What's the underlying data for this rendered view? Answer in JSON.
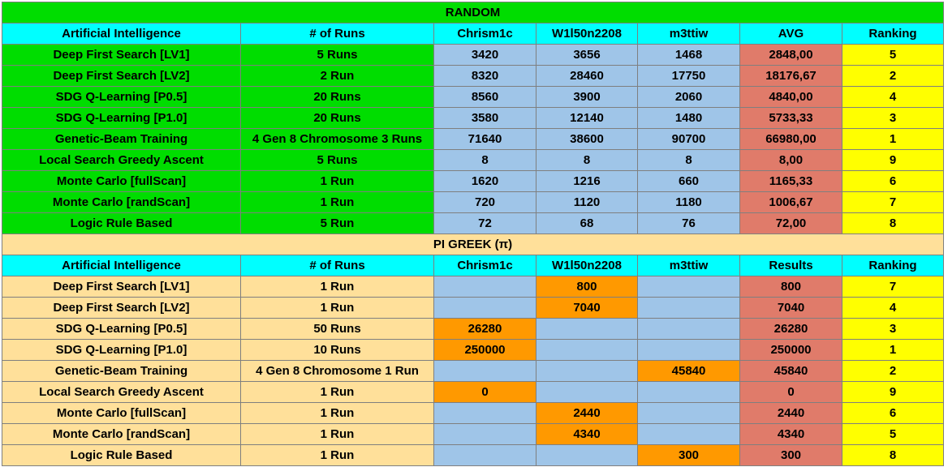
{
  "colors": {
    "random_section": "#00dd00",
    "pi_section": "#ffe09a",
    "header": "#00ffff",
    "player_cell": "#9fc5e8",
    "highlight_cell": "#ff9900",
    "avg_cell": "#e07b6a",
    "rank_cell": "#ffff00"
  },
  "chart_data": [
    {
      "type": "table",
      "title": "RANDOM",
      "columns": [
        "Artificial Intelligence",
        "# of Runs",
        "Chrism1c",
        "W1l50n2208",
        "m3ttiw",
        "AVG",
        "Ranking"
      ],
      "rows": [
        {
          "ai": "Deep First Search [LV1]",
          "runs": "5 Runs",
          "p1": "3420",
          "p2": "3656",
          "p3": "1468",
          "result": "2848,00",
          "rank": "5",
          "best": ""
        },
        {
          "ai": "Deep First Search [LV2]",
          "runs": "2 Run",
          "p1": "8320",
          "p2": "28460",
          "p3": "17750",
          "result": "18176,67",
          "rank": "2",
          "best": ""
        },
        {
          "ai": "SDG Q-Learning [P0.5]",
          "runs": "20 Runs",
          "p1": "8560",
          "p2": "3900",
          "p3": "2060",
          "result": "4840,00",
          "rank": "4",
          "best": ""
        },
        {
          "ai": "SDG Q-Learning [P1.0]",
          "runs": "20 Runs",
          "p1": "3580",
          "p2": "12140",
          "p3": "1480",
          "result": "5733,33",
          "rank": "3",
          "best": ""
        },
        {
          "ai": "Genetic-Beam Training",
          "runs": "4 Gen 8 Chromosome 3 Runs",
          "p1": "71640",
          "p2": "38600",
          "p3": "90700",
          "result": "66980,00",
          "rank": "1",
          "best": ""
        },
        {
          "ai": "Local Search Greedy Ascent",
          "runs": "5 Runs",
          "p1": "8",
          "p2": "8",
          "p3": "8",
          "result": "8,00",
          "rank": "9",
          "best": ""
        },
        {
          "ai": "Monte Carlo [fullScan]",
          "runs": "1 Run",
          "p1": "1620",
          "p2": "1216",
          "p3": "660",
          "result": "1165,33",
          "rank": "6",
          "best": ""
        },
        {
          "ai": "Monte Carlo [randScan]",
          "runs": "1 Run",
          "p1": "720",
          "p2": "1120",
          "p3": "1180",
          "result": "1006,67",
          "rank": "7",
          "best": ""
        },
        {
          "ai": "Logic Rule Based",
          "runs": "5 Run",
          "p1": "72",
          "p2": "68",
          "p3": "76",
          "result": "72,00",
          "rank": "8",
          "best": ""
        }
      ]
    },
    {
      "type": "table",
      "title": "PI GREEK (π)",
      "columns": [
        "Artificial Intelligence",
        "# of Runs",
        "Chrism1c",
        "W1l50n2208",
        "m3ttiw",
        "Results",
        "Ranking"
      ],
      "rows": [
        {
          "ai": "Deep First Search [LV1]",
          "runs": "1 Run",
          "p1": "",
          "p2": "800",
          "p3": "",
          "result": "800",
          "rank": "7",
          "best": "p2"
        },
        {
          "ai": "Deep First Search [LV2]",
          "runs": "1 Run",
          "p1": "",
          "p2": "7040",
          "p3": "",
          "result": "7040",
          "rank": "4",
          "best": "p2"
        },
        {
          "ai": "SDG Q-Learning [P0.5]",
          "runs": "50 Runs",
          "p1": "26280",
          "p2": "",
          "p3": "",
          "result": "26280",
          "rank": "3",
          "best": "p1"
        },
        {
          "ai": "SDG Q-Learning [P1.0]",
          "runs": "10 Runs",
          "p1": "250000",
          "p2": "",
          "p3": "",
          "result": "250000",
          "rank": "1",
          "best": "p1"
        },
        {
          "ai": "Genetic-Beam Training",
          "runs": "4 Gen 8 Chromosome 1 Run",
          "p1": "",
          "p2": "",
          "p3": "45840",
          "result": "45840",
          "rank": "2",
          "best": "p3"
        },
        {
          "ai": "Local Search Greedy Ascent",
          "runs": "1 Run",
          "p1": "0",
          "p2": "",
          "p3": "",
          "result": "0",
          "rank": "9",
          "best": "p1"
        },
        {
          "ai": "Monte Carlo [fullScan]",
          "runs": "1 Run",
          "p1": "",
          "p2": "2440",
          "p3": "",
          "result": "2440",
          "rank": "6",
          "best": "p2"
        },
        {
          "ai": "Monte Carlo [randScan]",
          "runs": "1 Run",
          "p1": "",
          "p2": "4340",
          "p3": "",
          "result": "4340",
          "rank": "5",
          "best": "p2"
        },
        {
          "ai": "Logic Rule Based",
          "runs": "1 Run",
          "p1": "",
          "p2": "",
          "p3": "300",
          "result": "300",
          "rank": "8",
          "best": "p3"
        }
      ]
    }
  ]
}
